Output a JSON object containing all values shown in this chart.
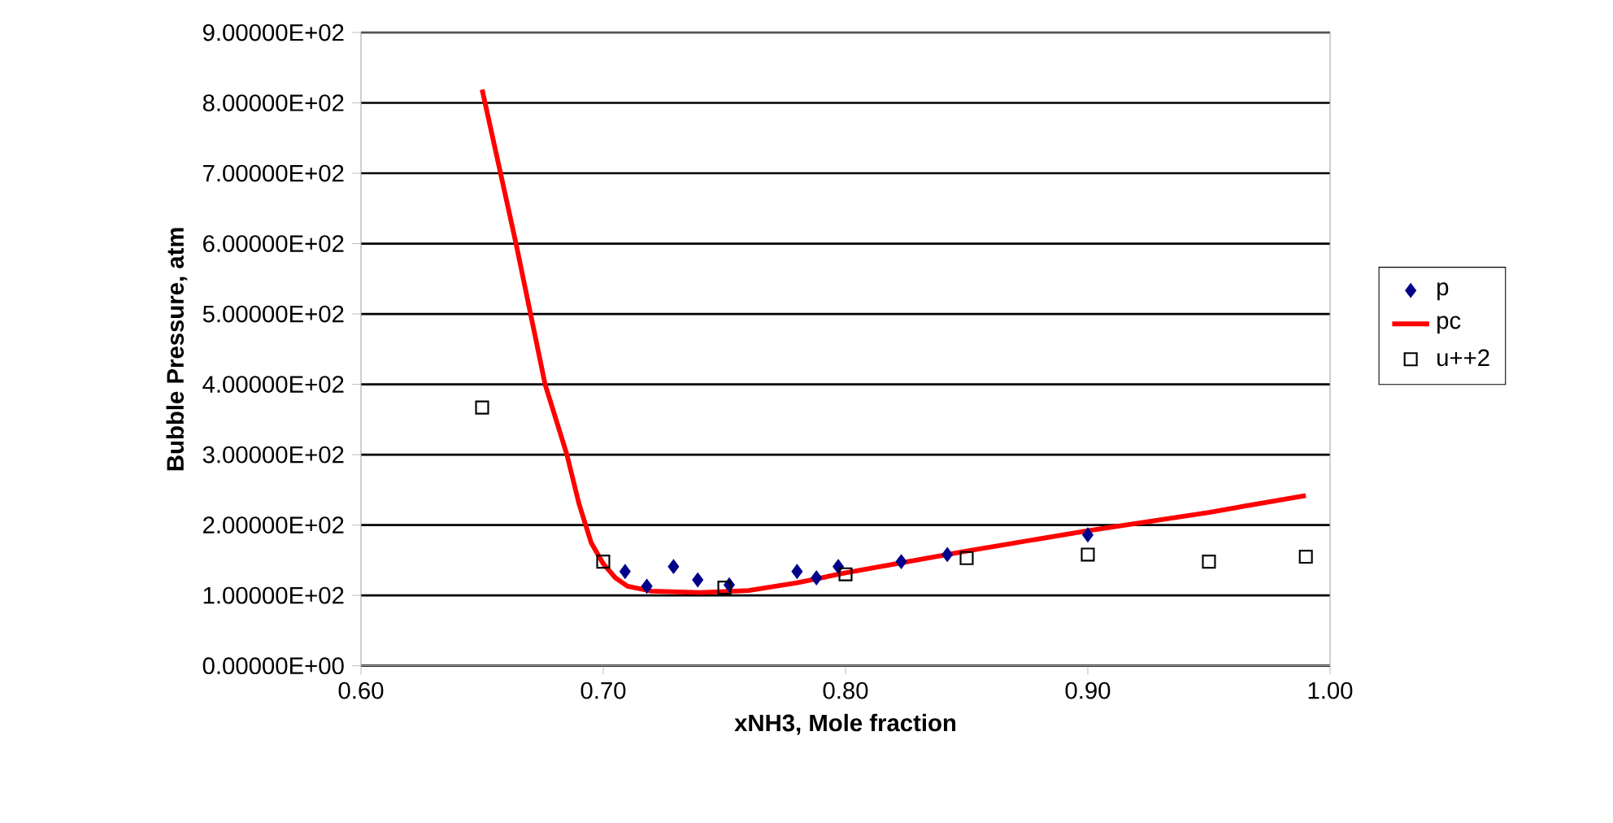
{
  "chart_data": {
    "type": "scatter",
    "xlabel": "xNH3, Mole fraction",
    "ylabel": "Bubble Pressure, atm",
    "xlim": [
      0.6,
      1.0
    ],
    "xticks": [
      {
        "value": 0.6,
        "label": "0.60"
      },
      {
        "value": 0.7,
        "label": "0.70"
      },
      {
        "value": 0.8,
        "label": "0.80"
      },
      {
        "value": 0.9,
        "label": "0.90"
      },
      {
        "value": 1.0,
        "label": "1.00"
      }
    ],
    "ylim": [
      0,
      900
    ],
    "yticks": [
      {
        "value": 0,
        "label": "0.00000E+00"
      },
      {
        "value": 100,
        "label": "1.00000E+02"
      },
      {
        "value": 200,
        "label": "2.00000E+02"
      },
      {
        "value": 300,
        "label": "3.00000E+02"
      },
      {
        "value": 400,
        "label": "4.00000E+02"
      },
      {
        "value": 500,
        "label": "5.00000E+02"
      },
      {
        "value": 600,
        "label": "6.00000E+02"
      },
      {
        "value": 700,
        "label": "7.00000E+02"
      },
      {
        "value": 800,
        "label": "8.00000E+02"
      },
      {
        "value": 900,
        "label": "9.00000E+02"
      }
    ],
    "grid": "y",
    "legend": "right",
    "series": [
      {
        "name": "p",
        "marker": "diamond",
        "color": "#00008b",
        "x": [
          0.709,
          0.718,
          0.729,
          0.739,
          0.752,
          0.78,
          0.788,
          0.797,
          0.823,
          0.842,
          0.9
        ],
        "values": [
          134,
          113,
          141,
          122,
          115,
          134,
          125,
          141,
          148,
          158,
          186
        ]
      },
      {
        "name": "pc",
        "type": "line",
        "marker": "none",
        "line_style": "solid",
        "color": "#ff0000",
        "x": [
          0.65,
          0.664,
          0.676,
          0.685,
          0.69,
          0.695,
          0.7,
          0.705,
          0.71,
          0.72,
          0.74,
          0.76,
          0.78,
          0.8,
          0.85,
          0.9,
          0.95,
          0.99
        ],
        "values": [
          819,
          600,
          400,
          300,
          230,
          175,
          145,
          125,
          113,
          106,
          104,
          107,
          118,
          132,
          163,
          192,
          218,
          242
        ]
      },
      {
        "name": "u++2",
        "marker": "square",
        "color": "#000000",
        "x": [
          0.65,
          0.7,
          0.75,
          0.8,
          0.85,
          0.9,
          0.95,
          0.99
        ],
        "values": [
          367,
          148,
          111,
          130,
          153,
          158,
          148,
          155
        ]
      }
    ]
  }
}
